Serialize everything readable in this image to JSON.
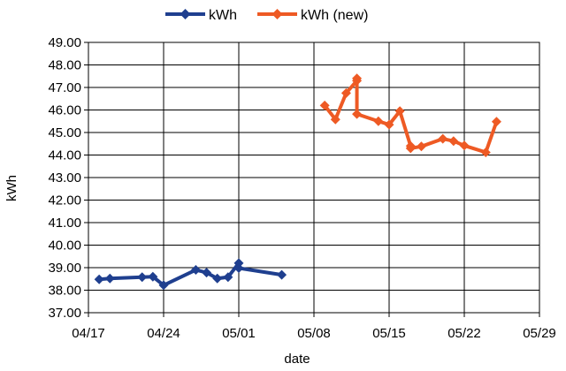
{
  "chart_data": {
    "type": "line",
    "xlabel": "date",
    "ylabel": "kWh",
    "ylim": [
      37.0,
      49.0
    ],
    "y_ticks": [
      "37.00",
      "38.00",
      "39.00",
      "40.00",
      "41.00",
      "42.00",
      "43.00",
      "44.00",
      "45.00",
      "46.00",
      "47.00",
      "48.00",
      "49.00"
    ],
    "x_range": [
      "2000-04-17",
      "2000-05-29"
    ],
    "x_ticks": [
      {
        "date": "2000-04-17",
        "label": "04/17"
      },
      {
        "date": "2000-04-24",
        "label": "04/24"
      },
      {
        "date": "2000-05-01",
        "label": "05/01"
      },
      {
        "date": "2000-05-08",
        "label": "05/08"
      },
      {
        "date": "2000-05-15",
        "label": "05/15"
      },
      {
        "date": "2000-05-22",
        "label": "05/22"
      },
      {
        "date": "2000-05-29",
        "label": "05/29"
      }
    ],
    "grid": true,
    "legend_position": "top-center",
    "series": [
      {
        "name": "kWh",
        "color": "#1f3f8f",
        "points": [
          [
            "2000-04-18",
            38.48
          ],
          [
            "2000-04-19",
            38.52
          ],
          [
            "2000-04-22",
            38.58
          ],
          [
            "2000-04-23",
            38.6
          ],
          [
            "2000-04-24",
            38.22
          ],
          [
            "2000-04-27",
            38.9
          ],
          [
            "2000-04-28",
            38.78
          ],
          [
            "2000-04-29",
            38.52
          ],
          [
            "2000-04-30",
            38.58
          ],
          [
            "2000-05-01",
            39.2
          ],
          [
            "2000-05-01",
            38.98
          ],
          [
            "2000-05-05",
            38.68
          ]
        ]
      },
      {
        "name": "kWh (new)",
        "color": "#ee5a24",
        "points": [
          [
            "2000-05-09",
            46.2
          ],
          [
            "2000-05-10",
            45.58
          ],
          [
            "2000-05-11",
            46.75
          ],
          [
            "2000-05-12",
            47.3
          ],
          [
            "2000-05-12",
            47.4
          ],
          [
            "2000-05-12",
            45.82
          ],
          [
            "2000-05-14",
            45.5
          ],
          [
            "2000-05-15",
            45.35
          ],
          [
            "2000-05-16",
            45.95
          ],
          [
            "2000-05-17",
            44.4
          ],
          [
            "2000-05-17",
            44.3
          ],
          [
            "2000-05-18",
            44.38
          ],
          [
            "2000-05-20",
            44.72
          ],
          [
            "2000-05-21",
            44.62
          ],
          [
            "2000-05-22",
            44.42
          ],
          [
            "2000-05-24",
            44.12
          ],
          [
            "2000-05-25",
            45.48
          ]
        ]
      }
    ]
  }
}
